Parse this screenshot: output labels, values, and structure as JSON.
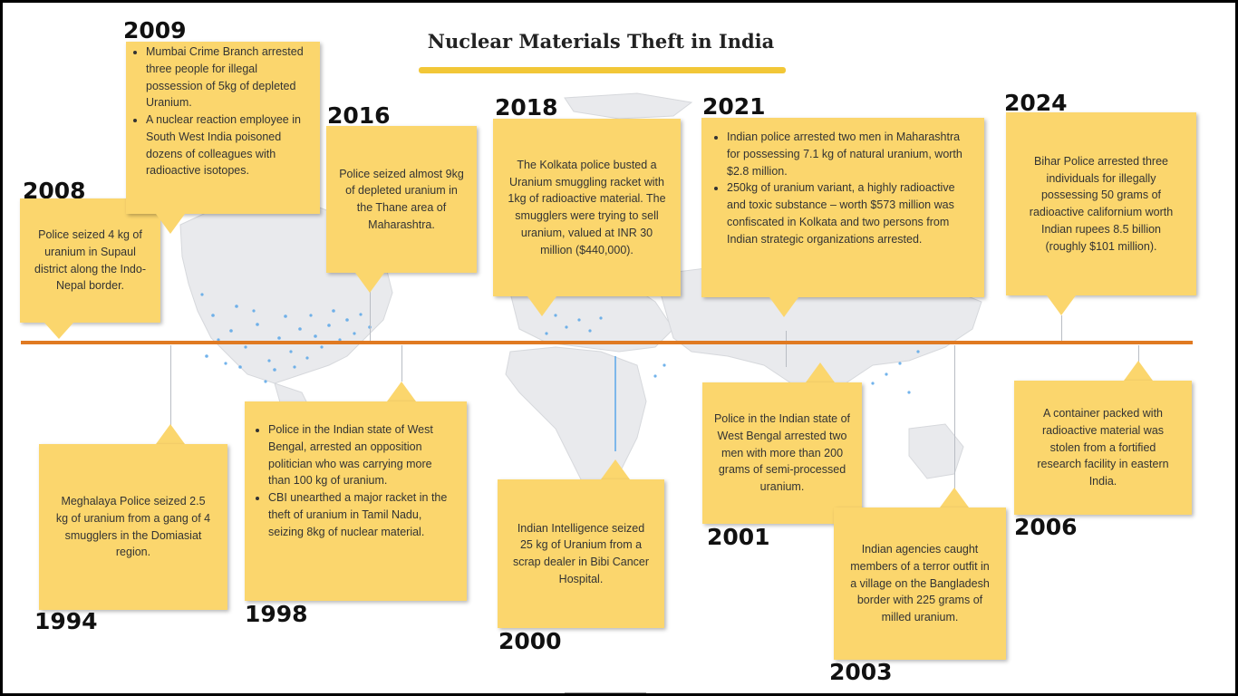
{
  "title": "Nuclear Materials Theft in India",
  "colors": {
    "box": "#fbd66d",
    "timeline": "#e07a22",
    "title_bar": "#f2c737",
    "map_land": "#e9eaed",
    "map_dots": "#5aa6e8"
  },
  "events_top": [
    {
      "year": "2008",
      "text": "Police seized 4 kg of uranium in Supaul district along the Indo-Nepal border."
    },
    {
      "year": "2009",
      "bullets": [
        "Mumbai Crime Branch arrested three people for illegal possession of 5kg of depleted Uranium.",
        "A nuclear reaction employee in South West India poisoned dozens of colleagues with radioactive isotopes."
      ]
    },
    {
      "year": "2016",
      "text": "Police seized almost 9kg of depleted uranium in the Thane area of Maharashtra."
    },
    {
      "year": "2018",
      "text": "The Kolkata police busted a Uranium smuggling racket with 1kg of radioactive material. The smugglers were trying to sell uranium, valued at INR 30 million ($440,000)."
    },
    {
      "year": "2021",
      "bullets": [
        "Indian police arrested two men in Maharashtra for possessing 7.1 kg of natural uranium, worth $2.8 million.",
        "250kg of uranium variant, a highly radioactive and toxic substance – worth $573 million was confiscated in Kolkata and two persons from Indian strategic organizations arrested."
      ]
    },
    {
      "year": "2024",
      "text": "Bihar Police arrested three individuals for illegally possessing 50 grams of radioactive californium worth Indian rupees 8.5 billion (roughly $101 million)."
    }
  ],
  "events_bottom": [
    {
      "year": "1994",
      "text": "Meghalaya Police seized 2.5 kg of uranium from a gang of 4 smugglers in the Domiasiat region."
    },
    {
      "year": "1998",
      "bullets": [
        "Police in the Indian state of West Bengal, arrested an opposition politician who was carrying more than 100 kg of uranium.",
        "CBI unearthed a major racket in the theft of uranium in Tamil Nadu, seizing 8kg of nuclear material."
      ]
    },
    {
      "year": "2000",
      "text": "Indian Intelligence seized 25 kg of Uranium from a scrap dealer in Bibi Cancer Hospital."
    },
    {
      "year": "2001",
      "text": "Police in the Indian state of West Bengal arrested two men with more than 200 grams of semi-processed uranium."
    },
    {
      "year": "2003",
      "text": "Indian agencies caught members of a terror outfit in a village on the Bangladesh border with 225 grams of milled uranium."
    },
    {
      "year": "2006",
      "text": "A container packed with radioactive material was stolen from a fortified research facility in eastern India."
    }
  ]
}
